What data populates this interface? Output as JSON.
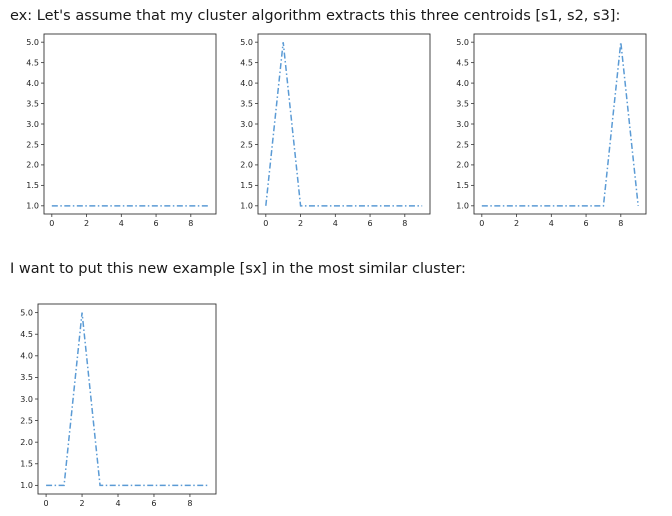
{
  "captions": {
    "intro": "ex: Let's assume that my cluster algorithm extracts this three centroids [s1, s2, s3]:",
    "question": "I want to put this new example [sx] in the most similar cluster:"
  },
  "style": {
    "line_color": "#5b9bd5",
    "line_style": "dash-dot",
    "frame_color": "#333333"
  },
  "chart_data": [
    {
      "id": "s1",
      "type": "line",
      "x": [
        0,
        1,
        2,
        3,
        4,
        5,
        6,
        7,
        8,
        9
      ],
      "y": [
        1,
        1,
        1,
        1,
        1,
        1,
        1,
        1,
        1,
        1
      ],
      "xlim": [
        -0.45,
        9.45
      ],
      "ylim": [
        0.8,
        5.2
      ],
      "xticks": [
        "0",
        "2",
        "4",
        "6",
        "8"
      ],
      "yticks": [
        "1.0",
        "1.5",
        "2.0",
        "2.5",
        "3.0",
        "3.5",
        "4.0",
        "4.5",
        "5.0"
      ],
      "grid": false,
      "legend": "none"
    },
    {
      "id": "s2",
      "type": "line",
      "x": [
        0,
        1,
        2,
        3,
        4,
        5,
        6,
        7,
        8,
        9
      ],
      "y": [
        1,
        5,
        1,
        1,
        1,
        1,
        1,
        1,
        1,
        1
      ],
      "xlim": [
        -0.45,
        9.45
      ],
      "ylim": [
        0.8,
        5.2
      ],
      "xticks": [
        "0",
        "2",
        "4",
        "6",
        "8"
      ],
      "yticks": [
        "1.0",
        "1.5",
        "2.0",
        "2.5",
        "3.0",
        "3.5",
        "4.0",
        "4.5",
        "5.0"
      ],
      "grid": false,
      "legend": "none"
    },
    {
      "id": "s3",
      "type": "line",
      "x": [
        0,
        1,
        2,
        3,
        4,
        5,
        6,
        7,
        8,
        9
      ],
      "y": [
        1,
        1,
        1,
        1,
        1,
        1,
        1,
        1,
        5,
        1
      ],
      "xlim": [
        -0.45,
        9.45
      ],
      "ylim": [
        0.8,
        5.2
      ],
      "xticks": [
        "0",
        "2",
        "4",
        "6",
        "8"
      ],
      "yticks": [
        "1.0",
        "1.5",
        "2.0",
        "2.5",
        "3.0",
        "3.5",
        "4.0",
        "4.5",
        "5.0"
      ],
      "grid": false,
      "legend": "none"
    },
    {
      "id": "sx",
      "type": "line",
      "x": [
        0,
        1,
        2,
        3,
        4,
        5,
        6,
        7,
        8,
        9
      ],
      "y": [
        1,
        1,
        5,
        1,
        1,
        1,
        1,
        1,
        1,
        1
      ],
      "xlim": [
        -0.45,
        9.45
      ],
      "ylim": [
        0.8,
        5.2
      ],
      "xticks": [
        "0",
        "2",
        "4",
        "6",
        "8"
      ],
      "yticks": [
        "1.0",
        "1.5",
        "2.0",
        "2.5",
        "3.0",
        "3.5",
        "4.0",
        "4.5",
        "5.0"
      ],
      "grid": false,
      "legend": "none"
    }
  ]
}
